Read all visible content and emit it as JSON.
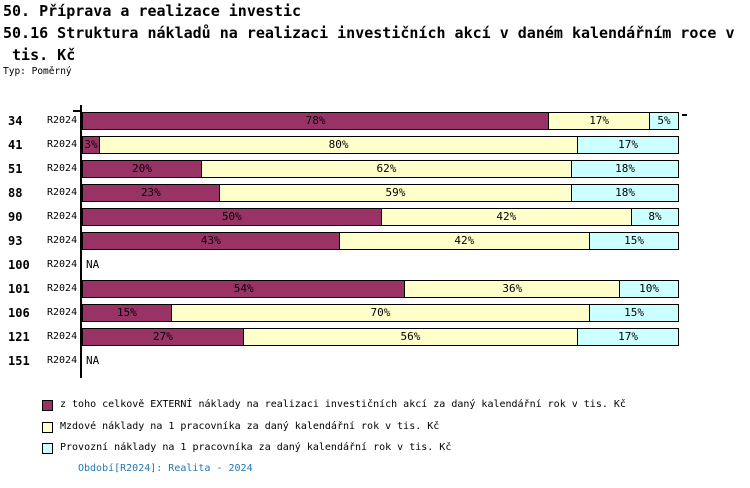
{
  "header": {
    "title_line1": "50. Příprava a realizace investic",
    "title_line2": "50.16 Struktura nákladů na realizaci investičních akcí v daném kalendářním roce v",
    "title_line3": " tis. Kč",
    "type_label": "Typ: Poměrný"
  },
  "chart_data": {
    "type": "bar",
    "orientation": "horizontal",
    "stacked": true,
    "value_unit": "%",
    "xlim": [
      0,
      100
    ],
    "grid": false,
    "legend_position": "bottom-left",
    "categories": [
      "34",
      "41",
      "51",
      "88",
      "90",
      "93",
      "100",
      "101",
      "106",
      "121",
      "151"
    ],
    "period_label": "R2024",
    "na_label": "NA",
    "rows": [
      {
        "category": "34",
        "period": "R2024",
        "values": [
          78,
          17,
          5
        ]
      },
      {
        "category": "41",
        "period": "R2024",
        "values": [
          3,
          80,
          17
        ]
      },
      {
        "category": "51",
        "period": "R2024",
        "values": [
          20,
          62,
          18
        ]
      },
      {
        "category": "88",
        "period": "R2024",
        "values": [
          23,
          59,
          18
        ]
      },
      {
        "category": "90",
        "period": "R2024",
        "values": [
          50,
          42,
          8
        ]
      },
      {
        "category": "93",
        "period": "R2024",
        "values": [
          43,
          42,
          15
        ]
      },
      {
        "category": "100",
        "period": "R2024",
        "values": null
      },
      {
        "category": "101",
        "period": "R2024",
        "values": [
          54,
          36,
          10
        ]
      },
      {
        "category": "106",
        "period": "R2024",
        "values": [
          15,
          70,
          15
        ]
      },
      {
        "category": "121",
        "period": "R2024",
        "values": [
          27,
          56,
          17
        ]
      },
      {
        "category": "151",
        "period": "R2024",
        "values": null
      }
    ],
    "series": [
      {
        "name": "z toho celkově EXTERNÍ náklady na realizaci investičních akcí za daný kalendářní rok v tis. Kč",
        "color": "#993366"
      },
      {
        "name": "Mzdové náklady na 1 pracovníka za daný kalendářní rok v tis. Kč",
        "color": "#FFFFCC"
      },
      {
        "name": "Provozní náklady na 1 pracovníka za daný kalendářní rok v tis. Kč",
        "color": "#CCFFFF"
      }
    ]
  },
  "footer": {
    "period_caption": "Období[R2024]: Realita - 2024",
    "color": "#1F77B4"
  }
}
